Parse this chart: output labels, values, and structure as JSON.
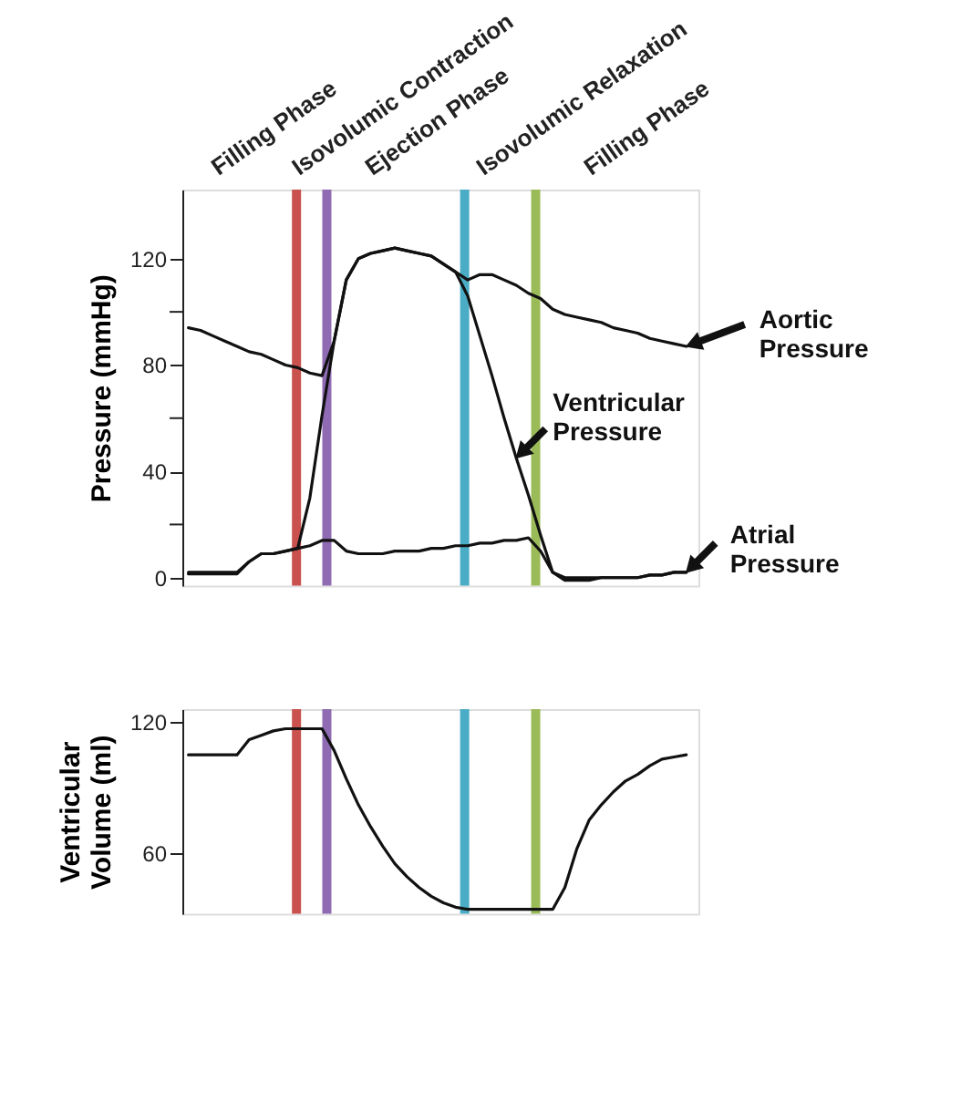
{
  "chart_data": [
    {
      "type": "line",
      "ylabel": "Pressure (mmHg)",
      "categories": [
        null,
        null,
        null,
        null,
        null,
        null,
        null,
        null,
        null,
        null,
        null,
        null,
        null,
        null,
        null,
        null,
        null,
        null,
        null,
        null,
        null,
        null,
        null,
        null,
        null,
        null,
        null,
        null,
        null,
        null,
        null,
        null,
        null,
        null,
        null,
        null,
        null,
        null,
        null,
        null,
        null,
        null
      ],
      "ylim": [
        -3,
        146
      ],
      "yticks": [
        0,
        {
          "value": 20,
          "label": null
        },
        40,
        {
          "value": 60,
          "label": null
        },
        80,
        {
          "value": 100,
          "label": null
        },
        120
      ],
      "tick_labels": "y",
      "grid": false,
      "legend": "right",
      "marker": "none",
      "line_style": "solid",
      "series": [
        {
          "name": "Aortic Pressure",
          "color": "#111111",
          "values": [
            94,
            93,
            91,
            89,
            87,
            85,
            84,
            82,
            80,
            79,
            77,
            76,
            89,
            112,
            120,
            122,
            123,
            124,
            123,
            122,
            121,
            118,
            115,
            112,
            114,
            114,
            112,
            110,
            107,
            105,
            101,
            99,
            98,
            97,
            96,
            94,
            93,
            92,
            90,
            89,
            88,
            87
          ]
        },
        {
          "name": "Ventricular Pressure",
          "color": "#111111",
          "values": [
            1.4,
            1.4,
            1.4,
            1.4,
            1.4,
            6,
            9,
            9,
            10,
            11,
            30,
            61,
            89,
            112,
            120,
            122,
            123,
            124,
            123,
            122,
            121,
            118,
            115,
            106,
            91,
            76,
            60,
            45,
            31,
            16,
            2,
            -1,
            -1,
            -1,
            0,
            0,
            0,
            0,
            1,
            1,
            2,
            2
          ]
        },
        {
          "name": "Atrial Pressure",
          "color": "#111111",
          "values": [
            2,
            2,
            2,
            2,
            2,
            6,
            9,
            9,
            10,
            11,
            12,
            14,
            14,
            10,
            9,
            9,
            9,
            10,
            10,
            10,
            11,
            11,
            12,
            12,
            13,
            13,
            14,
            14,
            15,
            10,
            2,
            0,
            0,
            0,
            0,
            0,
            0,
            0,
            1,
            1,
            2,
            2
          ]
        }
      ],
      "annotations": [
        "Filling Phase",
        "Isovolumic Contraction",
        "Ejection Phase",
        "Isovolumic Relaxation",
        "Filling Phase"
      ]
    },
    {
      "type": "line",
      "ylabel": "Ventricular Volume (ml)",
      "categories": [
        null,
        null,
        null,
        null,
        null,
        null,
        null,
        null,
        null,
        null,
        null,
        null,
        null,
        null,
        null,
        null,
        null,
        null,
        null,
        null,
        null,
        null,
        null,
        null,
        null,
        null,
        null,
        null,
        null,
        null,
        null,
        null,
        null,
        null,
        null,
        null,
        null,
        null,
        null,
        null,
        null,
        null
      ],
      "ylim": [
        32,
        126
      ],
      "yticks": [
        60,
        120
      ],
      "tick_labels": "y",
      "grid": false,
      "marker": "none",
      "line_style": "solid",
      "series": [
        {
          "color": "#111111",
          "values": [
            105,
            105,
            105,
            105,
            105,
            112,
            114,
            116,
            117,
            117,
            117,
            117,
            107,
            94,
            82,
            72,
            63,
            55,
            49,
            44,
            40,
            37,
            35,
            34,
            34,
            34,
            34,
            34,
            34,
            34,
            34,
            44,
            62,
            75,
            82,
            88,
            93,
            96,
            100,
            103,
            104,
            105
          ]
        }
      ]
    }
  ]
}
